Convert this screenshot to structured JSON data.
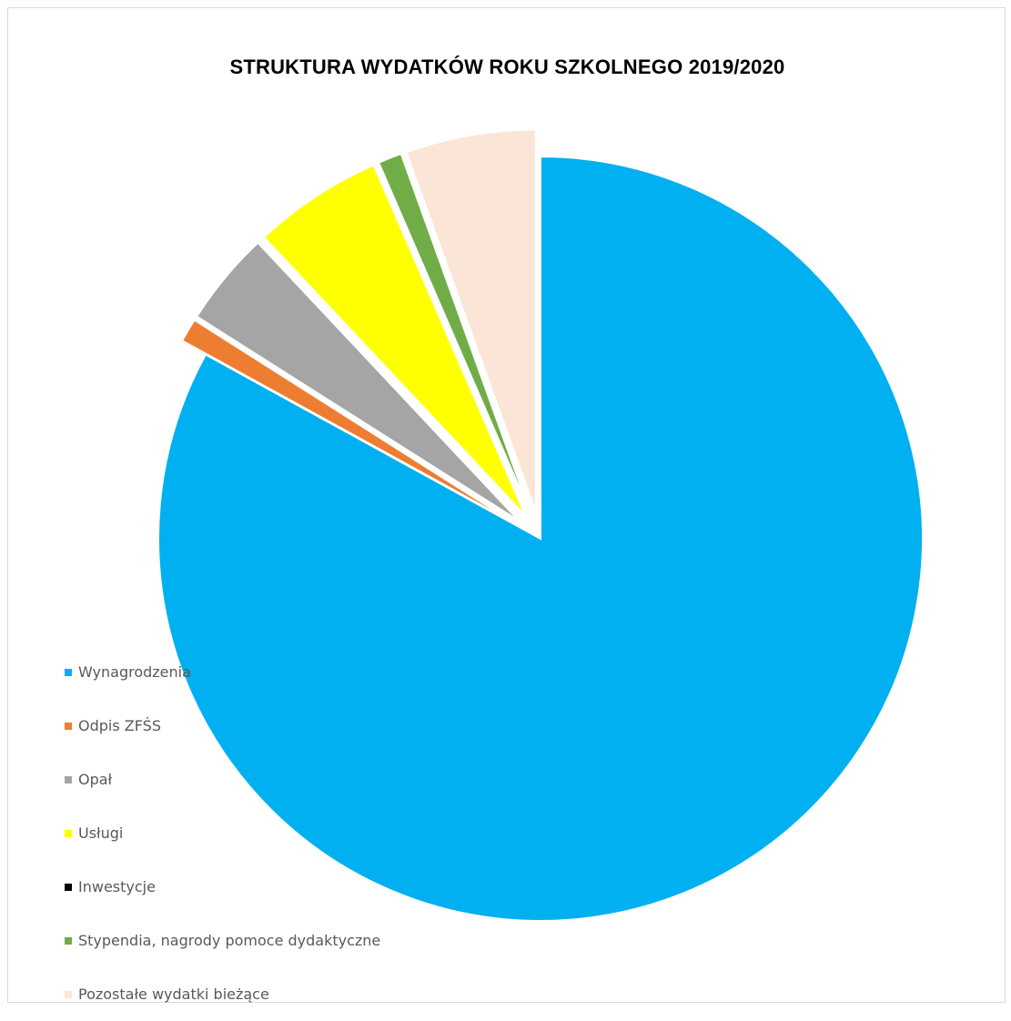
{
  "chart_data": {
    "type": "pie",
    "title": "STRUKTURA WYDATKÓW ROKU SZKOLNEGO 2019/2020",
    "slices": [
      {
        "label": "Wynagrodzenia",
        "value": 83.0,
        "color": "#00b0f0",
        "exploded": false
      },
      {
        "label": "Odpis ZFŚS",
        "value": 1.0,
        "color": "#ed7d31",
        "exploded": true
      },
      {
        "label": "Opał",
        "value": 4.0,
        "color": "#a5a5a5",
        "exploded": true
      },
      {
        "label": "Usługi",
        "value": 5.5,
        "color": "#ffff00",
        "exploded": true
      },
      {
        "label": "Inwestycje",
        "value": 0.0,
        "color": "#000000",
        "exploded": true
      },
      {
        "label": "Stypendia, nagrody pomoce dydaktyczne",
        "value": 1.0,
        "color": "#70ad47",
        "exploded": true
      },
      {
        "label": "Pozostałe wydatki bieżące",
        "value": 5.5,
        "color": "#fbe5d6",
        "exploded": true
      }
    ],
    "legend_position": "left"
  }
}
